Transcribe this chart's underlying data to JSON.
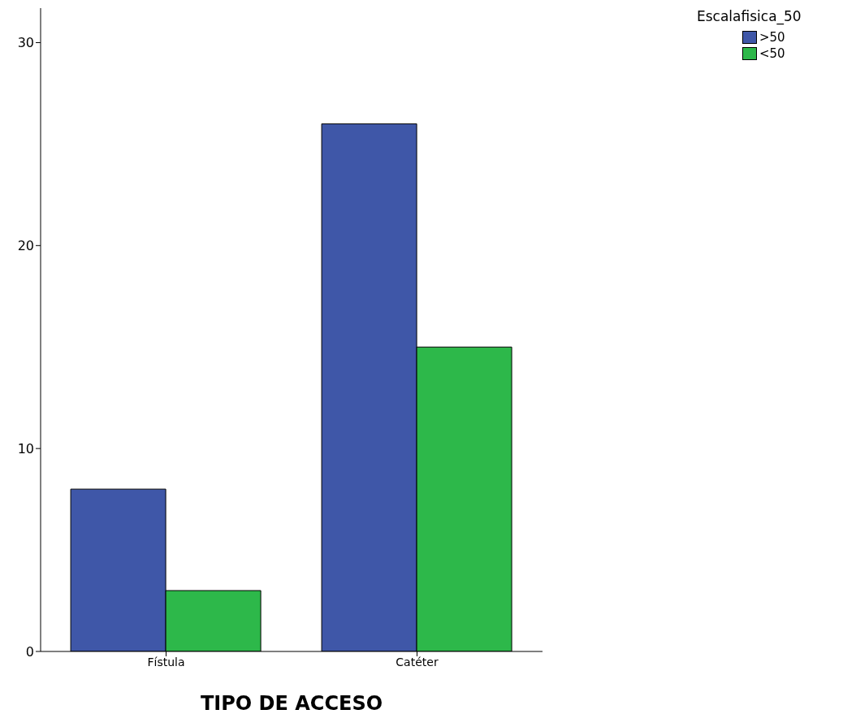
{
  "chart_data": {
    "type": "bar",
    "xlabel": "TIPO DE ACCESO",
    "legend_title": "Escalafisica_50",
    "categories": [
      "Fístula",
      "Catéter"
    ],
    "series": [
      {
        "name": ">50",
        "color": "#3f57a8",
        "values": [
          8,
          26
        ]
      },
      {
        "name": "<50",
        "color": "#2db84a",
        "values": [
          3,
          15
        ]
      }
    ],
    "ylim": [
      0,
      31.7
    ],
    "yticks": [
      0,
      10,
      20,
      30
    ],
    "grid": false,
    "legend": "top right"
  }
}
